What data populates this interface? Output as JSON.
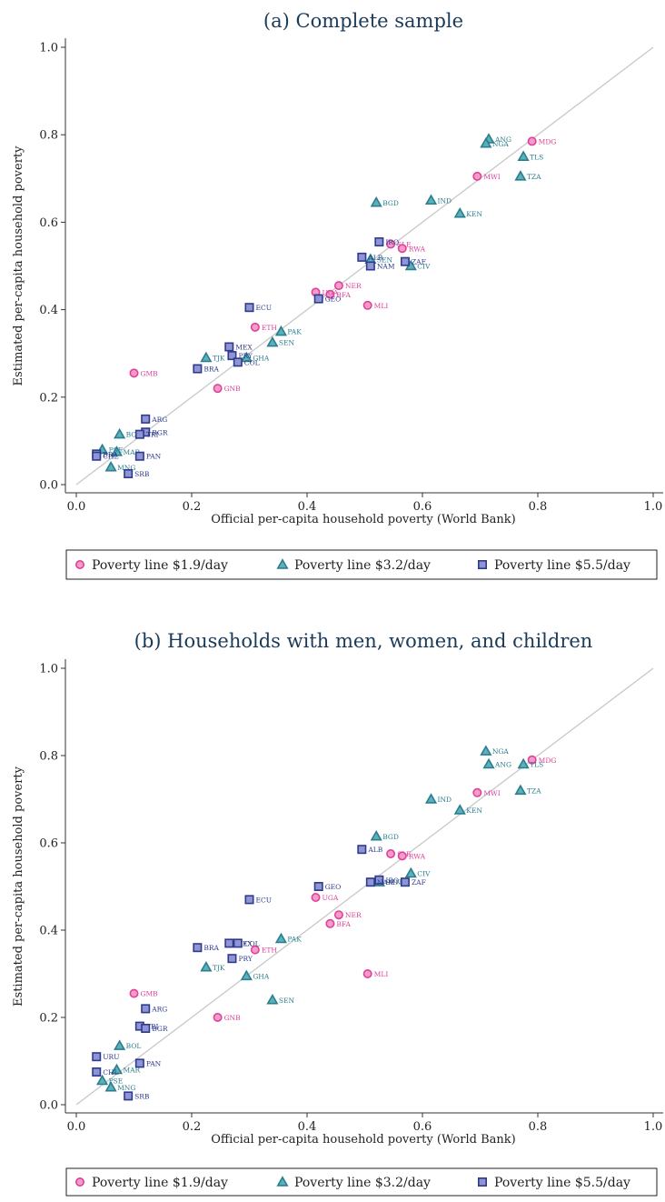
{
  "colors": {
    "line19": "#e0409a",
    "line32": "#2a7e8e",
    "line55": "#2e3a8c",
    "diag": "#c8c8c8",
    "axis": "#333333",
    "title": "#1a3a5a"
  },
  "legend": {
    "items": [
      {
        "key": "l19",
        "label": "Poverty line $1.9/day",
        "marker": "circle"
      },
      {
        "key": "l32",
        "label": "Poverty line $3.2/day",
        "marker": "triangle"
      },
      {
        "key": "l55",
        "label": "Poverty line $5.5/day",
        "marker": "square"
      }
    ],
    "placement": "bottom"
  },
  "chart_data": [
    {
      "type": "scatter",
      "title": "(a) Complete sample",
      "xlabel": "Official per-capita household poverty (World Bank)",
      "ylabel": "Estimated per-capita household poverty",
      "xlim": [
        0,
        1
      ],
      "ylim": [
        0,
        1
      ],
      "xticks": [
        "0.0",
        "0.2",
        "0.4",
        "0.6",
        "0.8",
        "1.0"
      ],
      "yticks": [
        "0.0",
        "0.2",
        "0.4",
        "0.6",
        "0.8",
        "1.0"
      ],
      "grid": false,
      "reference_line": "45-degree",
      "series": [
        {
          "name": "Poverty line $1.9/day",
          "key": "l19",
          "points": [
            {
              "label": "MDG",
              "x": 0.79,
              "y": 0.785
            },
            {
              "label": "MWI",
              "x": 0.695,
              "y": 0.705
            },
            {
              "label": "SLE",
              "x": 0.545,
              "y": 0.55
            },
            {
              "label": "RWA",
              "x": 0.565,
              "y": 0.54
            },
            {
              "label": "NER",
              "x": 0.455,
              "y": 0.455
            },
            {
              "label": "BFA",
              "x": 0.44,
              "y": 0.435
            },
            {
              "label": "UGA",
              "x": 0.415,
              "y": 0.44
            },
            {
              "label": "MLI",
              "x": 0.505,
              "y": 0.41
            },
            {
              "label": "ETH",
              "x": 0.31,
              "y": 0.36
            },
            {
              "label": "GMB",
              "x": 0.1,
              "y": 0.255
            },
            {
              "label": "GNB",
              "x": 0.245,
              "y": 0.22
            }
          ]
        },
        {
          "name": "Poverty line $3.2/day",
          "key": "l32",
          "points": [
            {
              "label": "ANG",
              "x": 0.715,
              "y": 0.79
            },
            {
              "label": "NGA",
              "x": 0.71,
              "y": 0.78
            },
            {
              "label": "TLS",
              "x": 0.775,
              "y": 0.75
            },
            {
              "label": "TZA",
              "x": 0.77,
              "y": 0.705
            },
            {
              "label": "BGD",
              "x": 0.52,
              "y": 0.645
            },
            {
              "label": "IND",
              "x": 0.615,
              "y": 0.65
            },
            {
              "label": "KEN",
              "x": 0.665,
              "y": 0.62
            },
            {
              "label": "SEN",
              "x": 0.51,
              "y": 0.515
            },
            {
              "label": "CIV",
              "x": 0.58,
              "y": 0.5
            },
            {
              "label": "PAK",
              "x": 0.355,
              "y": 0.35
            },
            {
              "label": "SEN",
              "x": 0.34,
              "y": 0.325
            },
            {
              "label": "TJK",
              "x": 0.225,
              "y": 0.29
            },
            {
              "label": "GHA",
              "x": 0.295,
              "y": 0.29
            },
            {
              "label": "BOL",
              "x": 0.075,
              "y": 0.115
            },
            {
              "label": "MAR",
              "x": 0.07,
              "y": 0.075
            },
            {
              "label": "PSE",
              "x": 0.045,
              "y": 0.08
            },
            {
              "label": "MNG",
              "x": 0.06,
              "y": 0.04
            }
          ]
        },
        {
          "name": "Poverty line $5.5/day",
          "key": "l55",
          "points": [
            {
              "label": "IRQ",
              "x": 0.525,
              "y": 0.555
            },
            {
              "label": "ALB",
              "x": 0.495,
              "y": 0.52
            },
            {
              "label": "ZAF",
              "x": 0.57,
              "y": 0.51
            },
            {
              "label": "NAM",
              "x": 0.51,
              "y": 0.5
            },
            {
              "label": "GEO",
              "x": 0.42,
              "y": 0.425
            },
            {
              "label": "ECU",
              "x": 0.3,
              "y": 0.405
            },
            {
              "label": "MEX",
              "x": 0.265,
              "y": 0.315
            },
            {
              "label": "PRY",
              "x": 0.27,
              "y": 0.295
            },
            {
              "label": "COL",
              "x": 0.28,
              "y": 0.28
            },
            {
              "label": "BRA",
              "x": 0.21,
              "y": 0.265
            },
            {
              "label": "ARG",
              "x": 0.12,
              "y": 0.15
            },
            {
              "label": "BGR",
              "x": 0.12,
              "y": 0.12
            },
            {
              "label": "TRI",
              "x": 0.11,
              "y": 0.115
            },
            {
              "label": "PAN",
              "x": 0.11,
              "y": 0.065
            },
            {
              "label": "BRA",
              "x": 0.035,
              "y": 0.07
            },
            {
              "label": "CHL",
              "x": 0.035,
              "y": 0.065
            },
            {
              "label": "SRB",
              "x": 0.09,
              "y": 0.025
            }
          ]
        }
      ]
    },
    {
      "type": "scatter",
      "title": "(b) Households with men, women, and children",
      "xlabel": "Official per-capita household poverty (World Bank)",
      "ylabel": "Estimated per-capita household poverty",
      "xlim": [
        0,
        1
      ],
      "ylim": [
        0,
        1
      ],
      "xticks": [
        "0.0",
        "0.2",
        "0.4",
        "0.6",
        "0.8",
        "1.0"
      ],
      "yticks": [
        "0.0",
        "0.2",
        "0.4",
        "0.6",
        "0.8",
        "1.0"
      ],
      "grid": false,
      "reference_line": "45-degree",
      "series": [
        {
          "name": "Poverty line $1.9/day",
          "key": "l19",
          "points": [
            {
              "label": "MDG",
              "x": 0.79,
              "y": 0.79
            },
            {
              "label": "MWI",
              "x": 0.695,
              "y": 0.715
            },
            {
              "label": "SLE",
              "x": 0.545,
              "y": 0.575
            },
            {
              "label": "RWA",
              "x": 0.565,
              "y": 0.57
            },
            {
              "label": "UGA",
              "x": 0.415,
              "y": 0.475
            },
            {
              "label": "NER",
              "x": 0.455,
              "y": 0.435
            },
            {
              "label": "BFA",
              "x": 0.44,
              "y": 0.415
            },
            {
              "label": "ETH",
              "x": 0.31,
              "y": 0.355
            },
            {
              "label": "MLI",
              "x": 0.505,
              "y": 0.3
            },
            {
              "label": "GMB",
              "x": 0.1,
              "y": 0.255
            },
            {
              "label": "GNB",
              "x": 0.245,
              "y": 0.2
            }
          ]
        },
        {
          "name": "Poverty line $3.2/day",
          "key": "l32",
          "points": [
            {
              "label": "NGA",
              "x": 0.71,
              "y": 0.81
            },
            {
              "label": "ANG",
              "x": 0.715,
              "y": 0.78
            },
            {
              "label": "TLS",
              "x": 0.775,
              "y": 0.78
            },
            {
              "label": "TZA",
              "x": 0.77,
              "y": 0.72
            },
            {
              "label": "IND",
              "x": 0.615,
              "y": 0.7
            },
            {
              "label": "KEN",
              "x": 0.665,
              "y": 0.675
            },
            {
              "label": "BGD",
              "x": 0.52,
              "y": 0.615
            },
            {
              "label": "CIV",
              "x": 0.58,
              "y": 0.53
            },
            {
              "label": "SEN",
              "x": 0.525,
              "y": 0.51
            },
            {
              "label": "PAK",
              "x": 0.355,
              "y": 0.38
            },
            {
              "label": "TJK",
              "x": 0.225,
              "y": 0.315
            },
            {
              "label": "GHA",
              "x": 0.295,
              "y": 0.295
            },
            {
              "label": "SEN",
              "x": 0.34,
              "y": 0.24
            },
            {
              "label": "BOL",
              "x": 0.075,
              "y": 0.135
            },
            {
              "label": "MAR",
              "x": 0.07,
              "y": 0.08
            },
            {
              "label": "PSE",
              "x": 0.045,
              "y": 0.055
            },
            {
              "label": "MNG",
              "x": 0.06,
              "y": 0.04
            }
          ]
        },
        {
          "name": "Poverty line $5.5/day",
          "key": "l55",
          "points": [
            {
              "label": "ALB",
              "x": 0.495,
              "y": 0.585
            },
            {
              "label": "IRQ",
              "x": 0.525,
              "y": 0.515
            },
            {
              "label": "NAM",
              "x": 0.51,
              "y": 0.51
            },
            {
              "label": "ZAF",
              "x": 0.57,
              "y": 0.51
            },
            {
              "label": "GEO",
              "x": 0.42,
              "y": 0.5
            },
            {
              "label": "ECU",
              "x": 0.3,
              "y": 0.47
            },
            {
              "label": "MEX",
              "x": 0.265,
              "y": 0.37
            },
            {
              "label": "COL",
              "x": 0.28,
              "y": 0.37
            },
            {
              "label": "BRA",
              "x": 0.21,
              "y": 0.36
            },
            {
              "label": "PRY",
              "x": 0.27,
              "y": 0.335
            },
            {
              "label": "ARG",
              "x": 0.12,
              "y": 0.22
            },
            {
              "label": "TRI",
              "x": 0.11,
              "y": 0.18
            },
            {
              "label": "BGR",
              "x": 0.12,
              "y": 0.175
            },
            {
              "label": "URU",
              "x": 0.035,
              "y": 0.11
            },
            {
              "label": "PAN",
              "x": 0.11,
              "y": 0.095
            },
            {
              "label": "CHL",
              "x": 0.035,
              "y": 0.075
            },
            {
              "label": "SRB",
              "x": 0.09,
              "y": 0.02
            }
          ]
        }
      ]
    }
  ]
}
